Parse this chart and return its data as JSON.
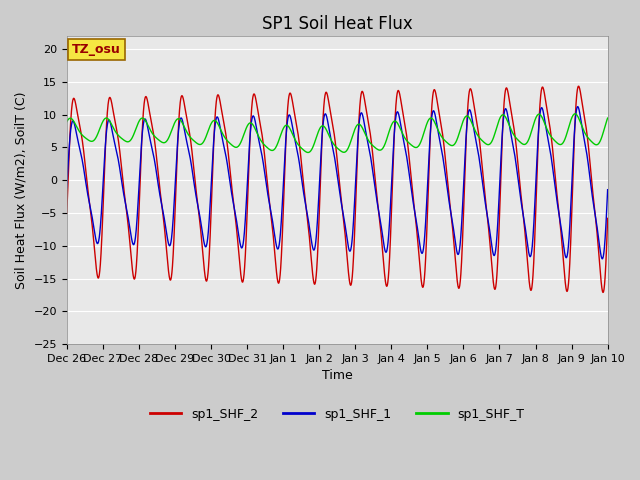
{
  "title": "SP1 Soil Heat Flux",
  "xlabel": "Time",
  "ylabel": "Soil Heat Flux (W/m2), SoilT (C)",
  "ylim": [
    -25,
    22
  ],
  "yticks": [
    -25,
    -20,
    -15,
    -10,
    -5,
    0,
    5,
    10,
    15,
    20
  ],
  "fig_bg_color": "#cccccc",
  "plot_bg_color": "#e8e8e8",
  "line_colors": [
    "#cc0000",
    "#0000cc",
    "#00cc00"
  ],
  "line_labels": [
    "sp1_SHF_2",
    "sp1_SHF_1",
    "sp1_SHF_T"
  ],
  "tz_label": "TZ_osu",
  "tz_bg": "#f5e642",
  "tz_border": "#996600",
  "tz_text_color": "#990000",
  "annotation_fontsize": 9,
  "title_fontsize": 12,
  "axis_label_fontsize": 9,
  "tick_label_fontsize": 8,
  "legend_fontsize": 9,
  "grid_color": "#ffffff",
  "tick_labels": [
    "Dec 26",
    "Dec 27",
    "Dec 28",
    "Dec 29",
    "Dec 30",
    "Dec 31",
    "Jan 1",
    "Jan 2",
    "Jan 3",
    "Jan 4",
    "Jan 5",
    "Jan 6",
    "Jan 7",
    "Jan 8",
    "Jan 9",
    "Jan 10"
  ]
}
